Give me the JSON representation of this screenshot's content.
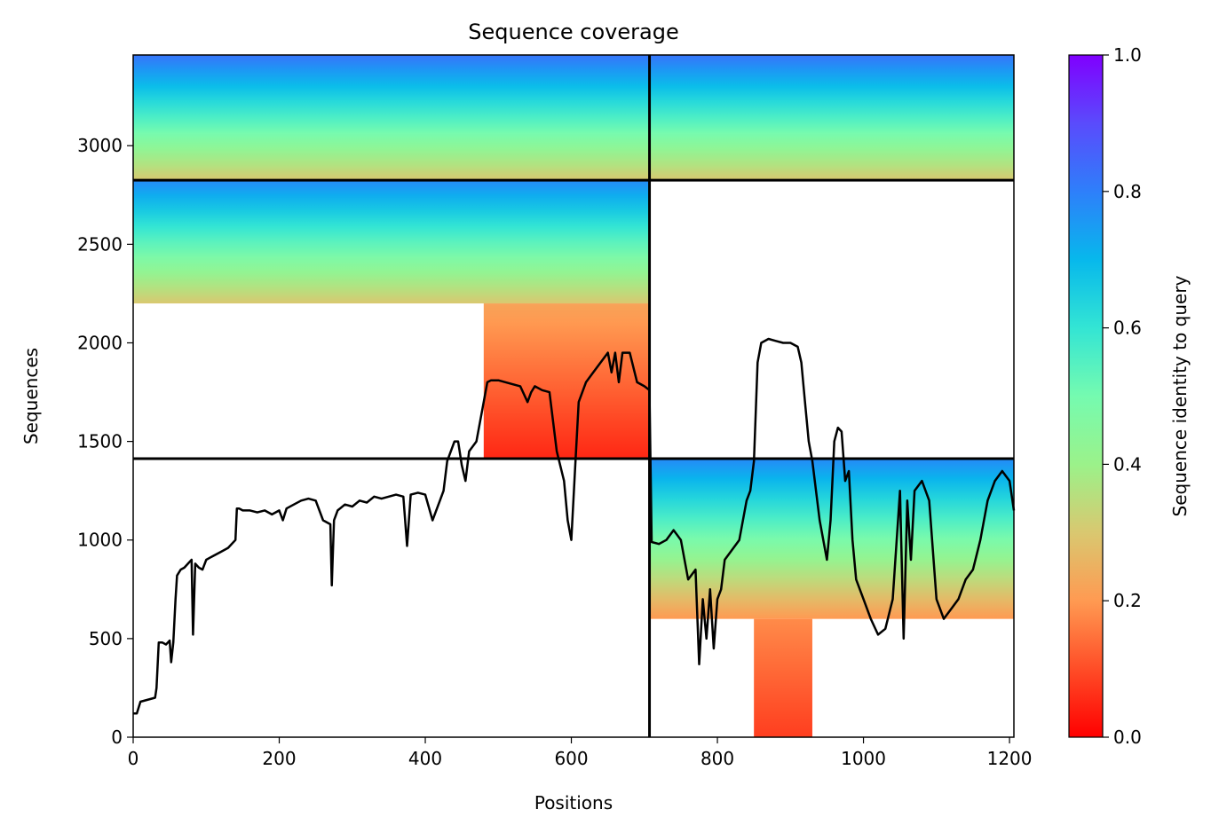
{
  "chart_data": {
    "type": "heatmap",
    "title": "Sequence coverage",
    "xlabel": "Positions",
    "ylabel": "Sequences",
    "xlim": [
      0,
      1206
    ],
    "ylim": [
      0,
      3460
    ],
    "x_ticks": [
      0,
      200,
      400,
      600,
      800,
      1000,
      1200
    ],
    "y_ticks": [
      0,
      500,
      1000,
      1500,
      2000,
      2500,
      3000
    ],
    "colorbar": {
      "label": "Sequence identity to query",
      "range": [
        0,
        1
      ],
      "ticks": [
        "0.0",
        "0.2",
        "0.4",
        "0.6",
        "0.8",
        "1.0"
      ],
      "colormap": "rainbow_r"
    },
    "dividers": {
      "x": [
        707
      ],
      "y": [
        1413,
        2825
      ]
    },
    "coverage_blocks": [
      {
        "x": [
          0,
          707
        ],
        "y": [
          2825,
          3460
        ],
        "identity_top": 0.82,
        "identity_bottom": 0.3
      },
      {
        "x": [
          707,
          1206
        ],
        "y": [
          2825,
          3460
        ],
        "identity_top": 0.82,
        "identity_bottom": 0.3
      },
      {
        "x": [
          0,
          707
        ],
        "y": [
          2200,
          2825
        ],
        "identity_top": 0.78,
        "identity_bottom": 0.3
      },
      {
        "x": [
          480,
          707
        ],
        "y": [
          1413,
          2200
        ],
        "identity_top": 0.22,
        "identity_bottom": 0.05
      },
      {
        "x": [
          707,
          1206
        ],
        "y": [
          600,
          1413
        ],
        "identity_top": 0.78,
        "identity_bottom": 0.2
      },
      {
        "x": [
          850,
          930
        ],
        "y": [
          0,
          600
        ],
        "identity_top": 0.18,
        "identity_bottom": 0.08
      }
    ],
    "grid": false,
    "legend": "none",
    "coverage_line": {
      "x": [
        0,
        5,
        10,
        30,
        32,
        35,
        40,
        45,
        50,
        52,
        55,
        58,
        60,
        65,
        70,
        75,
        80,
        82,
        85,
        90,
        95,
        100,
        105,
        110,
        120,
        130,
        140,
        142,
        145,
        150,
        160,
        170,
        180,
        190,
        200,
        205,
        210,
        220,
        230,
        240,
        250,
        260,
        270,
        272,
        275,
        280,
        290,
        300,
        310,
        320,
        330,
        340,
        350,
        360,
        370,
        375,
        380,
        390,
        400,
        410,
        420,
        425,
        430,
        435,
        440,
        445,
        450,
        455,
        460,
        470,
        480,
        485,
        490,
        500,
        510,
        520,
        530,
        540,
        545,
        550,
        560,
        570,
        580,
        590,
        595,
        600,
        605,
        610,
        620,
        630,
        640,
        650,
        655,
        660,
        665,
        670,
        680,
        690,
        700,
        707,
        710,
        720,
        730,
        740,
        750,
        760,
        770,
        775,
        780,
        785,
        790,
        795,
        800,
        805,
        810,
        820,
        830,
        840,
        845,
        850,
        855,
        860,
        870,
        880,
        890,
        900,
        910,
        915,
        920,
        925,
        930,
        940,
        950,
        955,
        960,
        965,
        970,
        975,
        980,
        985,
        990,
        1000,
        1010,
        1020,
        1030,
        1040,
        1050,
        1055,
        1060,
        1065,
        1070,
        1080,
        1090,
        1100,
        1110,
        1120,
        1130,
        1140,
        1150,
        1160,
        1170,
        1180,
        1190,
        1200,
        1206
      ],
      "y": [
        120,
        120,
        180,
        200,
        250,
        480,
        480,
        470,
        490,
        380,
        480,
        700,
        820,
        850,
        860,
        880,
        900,
        520,
        880,
        860,
        850,
        900,
        910,
        920,
        940,
        960,
        1000,
        1160,
        1160,
        1150,
        1150,
        1140,
        1150,
        1130,
        1150,
        1100,
        1160,
        1180,
        1200,
        1210,
        1200,
        1100,
        1080,
        770,
        1100,
        1150,
        1180,
        1170,
        1200,
        1190,
        1220,
        1210,
        1220,
        1230,
        1220,
        970,
        1230,
        1240,
        1230,
        1100,
        1200,
        1250,
        1400,
        1450,
        1500,
        1500,
        1380,
        1300,
        1450,
        1500,
        1700,
        1800,
        1810,
        1810,
        1800,
        1790,
        1780,
        1700,
        1750,
        1780,
        1760,
        1750,
        1450,
        1300,
        1100,
        1000,
        1350,
        1700,
        1800,
        1850,
        1900,
        1950,
        1850,
        1950,
        1800,
        1950,
        1950,
        1800,
        1780,
        1760,
        990,
        980,
        1000,
        1050,
        1000,
        800,
        850,
        370,
        700,
        500,
        750,
        450,
        700,
        750,
        900,
        950,
        1000,
        1200,
        1250,
        1400,
        1900,
        2000,
        2020,
        2010,
        2000,
        2000,
        1980,
        1900,
        1700,
        1500,
        1400,
        1100,
        900,
        1100,
        1500,
        1570,
        1550,
        1300,
        1350,
        1000,
        800,
        700,
        600,
        520,
        550,
        700,
        1250,
        500,
        1200,
        900,
        1250,
        1300,
        1200,
        700,
        600,
        650,
        700,
        800,
        850,
        1000,
        1200,
        1300,
        1350,
        1300,
        1150
      ]
    }
  }
}
